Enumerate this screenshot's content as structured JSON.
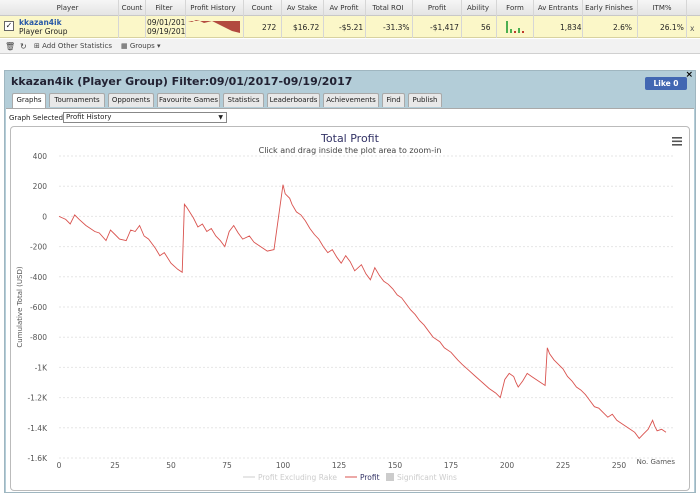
{
  "grid": {
    "headers": [
      "Player",
      "Count",
      "Filter",
      "Profit History",
      "Count",
      "Av Stake",
      "Av Profit",
      "Total ROI",
      "Profit",
      "Ability",
      "Form",
      "Av Entrants",
      "Early Finishes",
      "ITM%"
    ],
    "row": {
      "player_name": "kkazan4ik",
      "player_type": "Player Group",
      "filter_from": "09/01/201",
      "filter_to": "09/19/201",
      "count": "272",
      "av_stake": "$16.72",
      "av_profit": "-$5.21",
      "total_roi": "-31.3%",
      "profit": "-$1,417",
      "ability": "56",
      "av_entrants": "1,834",
      "early_finishes": "2.6%",
      "itm": "26.1%",
      "remove": "x"
    }
  },
  "toolbar": {
    "add_stats": "Add Other Statistics",
    "groups": "Groups"
  },
  "panel": {
    "title": "kkazan4ik (Player Group) Filter:09/01/2017-09/19/2017",
    "like": "Like 0",
    "close": "×",
    "tabs": [
      "Graphs",
      "Tournaments",
      "Opponents",
      "Favourite Games",
      "Statistics",
      "Leaderboards",
      "Achievements",
      "Find",
      "Publish"
    ],
    "graph_selected_label": "Graph Selected:",
    "graph_selected_value": "Profit History"
  },
  "chart_data": {
    "type": "line",
    "title": "Total Profit",
    "subtitle": "Click and drag inside the plot area to zoom-in",
    "xlabel": "No. Games",
    "ylabel": "Cumulative Total (USD)",
    "xlim": [
      0,
      275
    ],
    "ylim": [
      -1600,
      400
    ],
    "xticks": [
      0,
      25,
      50,
      75,
      100,
      125,
      150,
      175,
      200,
      225,
      250
    ],
    "yticks": [
      400,
      200,
      0,
      -200,
      -400,
      -600,
      -800,
      -1000,
      -1200,
      -1400,
      -1600
    ],
    "ytick_labels": [
      "400",
      "200",
      "0",
      "-200",
      "-400",
      "-600",
      "-800",
      "-1K",
      "-1.2K",
      "-1.4K",
      "-1.6K"
    ],
    "legend": [
      "Profit Excluding Rake",
      "Profit",
      "Significant Wins"
    ],
    "colors": {
      "profit": "#d9534f",
      "grid": "#e6e6e6",
      "axis_text": "#555555",
      "title": "#333366"
    },
    "series": [
      {
        "name": "Profit",
        "x": [
          0,
          3,
          5,
          7,
          9,
          12,
          14,
          16,
          18,
          21,
          23,
          25,
          27,
          30,
          32,
          34,
          36,
          38,
          40,
          43,
          45,
          47,
          50,
          53,
          55,
          56,
          57,
          60,
          62,
          64,
          66,
          68,
          70,
          72,
          74,
          76,
          78,
          80,
          82,
          85,
          87,
          90,
          93,
          96,
          100,
          101,
          103,
          104,
          106,
          108,
          110,
          112,
          114,
          116,
          118,
          120,
          122,
          124,
          126,
          128,
          130,
          132,
          135,
          137,
          139,
          141,
          143,
          145,
          147,
          149,
          151,
          153,
          155,
          157,
          159,
          161,
          163,
          165,
          167,
          170,
          172,
          175,
          178,
          180,
          183,
          186,
          189,
          192,
          195,
          197,
          199,
          201,
          203,
          204,
          205,
          207,
          209,
          211,
          213,
          215,
          217,
          218,
          219,
          221,
          223,
          225,
          227,
          229,
          231,
          233,
          235,
          237,
          239,
          241,
          243,
          245,
          247,
          249,
          251,
          253,
          255,
          257,
          259,
          261,
          263,
          265,
          266,
          267,
          269,
          271
        ],
        "y": [
          0,
          -20,
          -50,
          10,
          -20,
          -60,
          -80,
          -100,
          -110,
          -160,
          -90,
          -120,
          -150,
          -160,
          -90,
          -100,
          -60,
          -130,
          -150,
          -210,
          -260,
          -240,
          -310,
          -350,
          -370,
          80,
          60,
          -10,
          -70,
          -50,
          -100,
          -80,
          -130,
          -160,
          -200,
          -100,
          -60,
          -110,
          -150,
          -130,
          -170,
          -200,
          -230,
          -220,
          210,
          150,
          120,
          80,
          30,
          10,
          -30,
          -80,
          -120,
          -150,
          -200,
          -240,
          -220,
          -270,
          -310,
          -260,
          -300,
          -360,
          -320,
          -380,
          -420,
          -340,
          -390,
          -430,
          -450,
          -480,
          -520,
          -540,
          -580,
          -620,
          -650,
          -690,
          -720,
          -760,
          -800,
          -830,
          -870,
          -900,
          -950,
          -980,
          -1020,
          -1060,
          -1100,
          -1140,
          -1170,
          -1200,
          -1080,
          -1040,
          -1060,
          -1100,
          -1130,
          -1090,
          -1040,
          -1060,
          -1080,
          -1100,
          -1120,
          -870,
          -910,
          -950,
          -980,
          -1010,
          -1060,
          -1090,
          -1130,
          -1150,
          -1180,
          -1220,
          -1260,
          -1270,
          -1300,
          -1330,
          -1310,
          -1350,
          -1370,
          -1390,
          -1410,
          -1430,
          -1470,
          -1440,
          -1410,
          -1350,
          -1390,
          -1420,
          -1410,
          -1430
        ]
      }
    ]
  }
}
